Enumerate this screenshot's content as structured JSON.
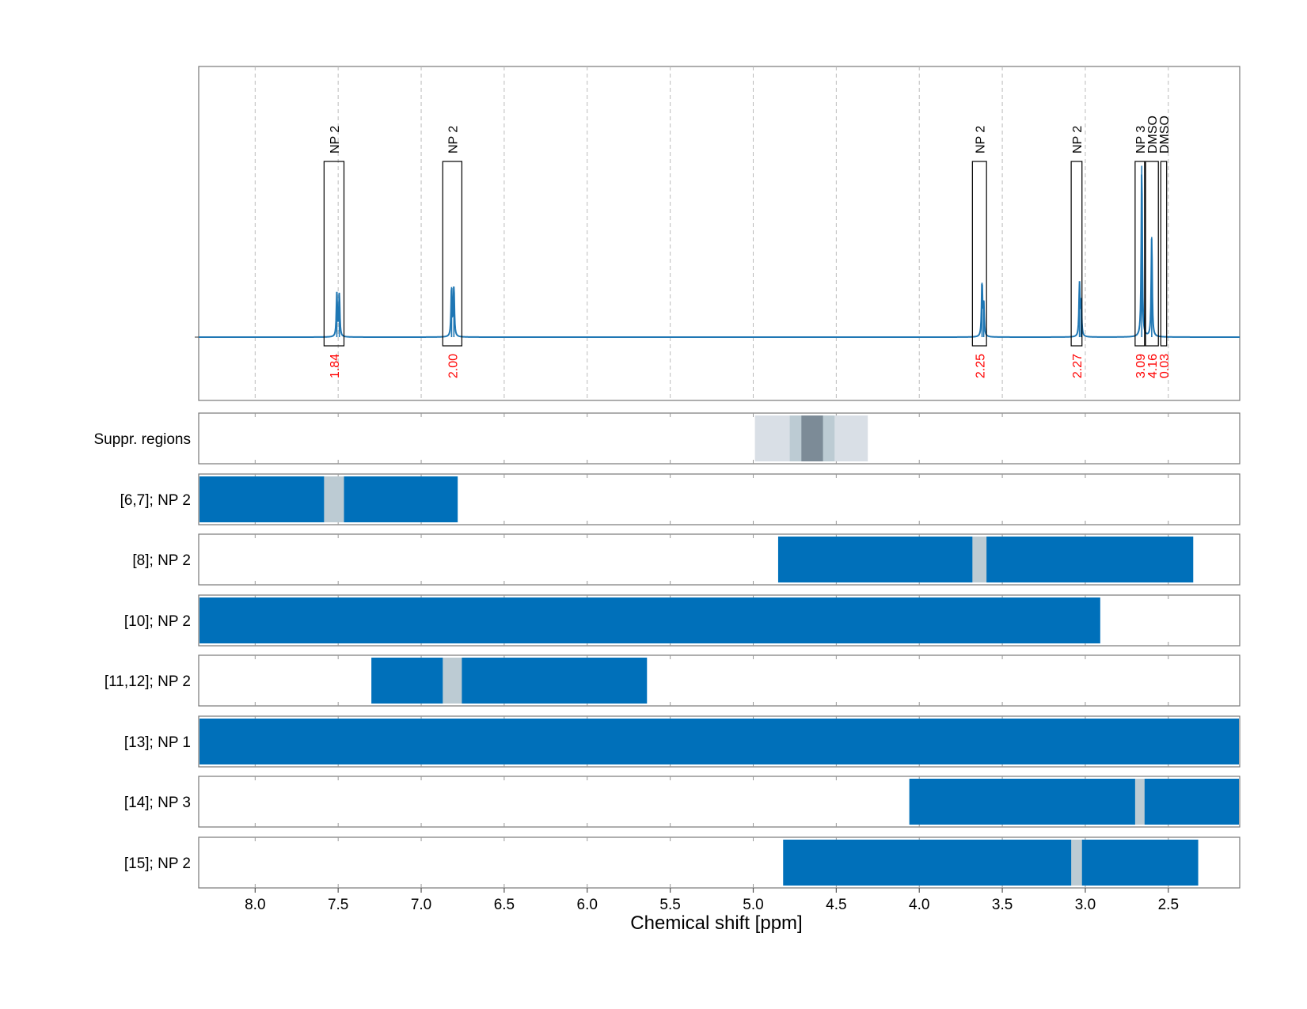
{
  "chart_data": {
    "type": "line",
    "xlabel": "Chemical shift [ppm]",
    "xlim": [
      8.34,
      2.07
    ],
    "x_ticks": [
      "8.0",
      "7.5",
      "7.0",
      "6.5",
      "6.0",
      "5.5",
      "5.0",
      "4.5",
      "4.0",
      "3.5",
      "3.0",
      "2.5"
    ],
    "x_tick_values": [
      8.0,
      7.5,
      7.0,
      6.5,
      6.0,
      5.5,
      5.0,
      4.5,
      4.0,
      3.5,
      3.0,
      2.5
    ],
    "grid": true,
    "colors": {
      "spectrum": "#1f77b4",
      "bar": "#0070ba",
      "overlap": "#bccbd3",
      "integral_label": "#ff0000",
      "suppr_light": "#d9dfe6",
      "suppr_mid": "#bccbd3",
      "suppr_dark": "#7c8b97"
    },
    "spectrum": {
      "baseline": 0,
      "ylim": [
        -0.13,
        1.0
      ],
      "peaks": [
        {
          "x": 7.508,
          "y": 0.245
        },
        {
          "x": 7.493,
          "y": 0.245
        },
        {
          "x": 6.817,
          "y": 0.285
        },
        {
          "x": 6.803,
          "y": 0.285
        },
        {
          "x": 3.622,
          "y": 0.31
        },
        {
          "x": 3.612,
          "y": 0.19
        },
        {
          "x": 3.035,
          "y": 0.3
        },
        {
          "x": 3.025,
          "y": 0.19
        },
        {
          "x": 2.66,
          "y": 0.975
        },
        {
          "x": 2.6,
          "y": 0.57
        }
      ]
    },
    "annotations": [
      {
        "label": "NP 2",
        "integral": "1.84",
        "x0": 7.585,
        "x1": 7.465
      },
      {
        "label": "NP 2",
        "integral": "2.00",
        "x0": 6.87,
        "x1": 6.755
      },
      {
        "label": "NP 2",
        "integral": "2.25",
        "x0": 3.68,
        "x1": 3.595
      },
      {
        "label": "NP 2",
        "integral": "2.27",
        "x0": 3.085,
        "x1": 3.02
      },
      {
        "label": "NP 3",
        "integral": "3.09",
        "x0": 2.7,
        "x1": 2.643
      },
      {
        "label": "DMSO",
        "integral": "4.16",
        "x0": 2.637,
        "x1": 2.56
      },
      {
        "label": "DMSO",
        "integral": "0.03",
        "x0": 2.545,
        "x1": 2.51
      }
    ],
    "rows": [
      {
        "label": "Suppr. regions",
        "kind": "suppr",
        "regions": [
          {
            "x0": 4.99,
            "x1": 4.31,
            "shade": "light"
          },
          {
            "x0": 4.78,
            "x1": 4.51,
            "shade": "mid"
          },
          {
            "x0": 4.71,
            "x1": 4.58,
            "shade": "dark"
          }
        ]
      },
      {
        "label": "[6,7]; NP 2",
        "bar": [
          8.34,
          6.78
        ],
        "overlap": [
          7.585,
          7.465
        ]
      },
      {
        "label": "[8]; NP 2",
        "bar": [
          4.85,
          2.35
        ],
        "overlap": [
          3.68,
          3.595
        ]
      },
      {
        "label": "[10]; NP 2",
        "bar": [
          8.34,
          2.91
        ],
        "overlap": null
      },
      {
        "label": "[11,12]; NP 2",
        "bar": [
          7.3,
          5.64
        ],
        "overlap": [
          6.87,
          6.755
        ]
      },
      {
        "label": "[13]; NP 1",
        "bar": [
          8.34,
          2.07
        ],
        "overlap": null
      },
      {
        "label": "[14]; NP 3",
        "bar": [
          4.06,
          2.07
        ],
        "overlap": [
          2.7,
          2.643
        ]
      },
      {
        "label": "[15]; NP 2",
        "bar": [
          4.82,
          2.32
        ],
        "overlap": [
          3.085,
          3.02
        ]
      }
    ]
  }
}
